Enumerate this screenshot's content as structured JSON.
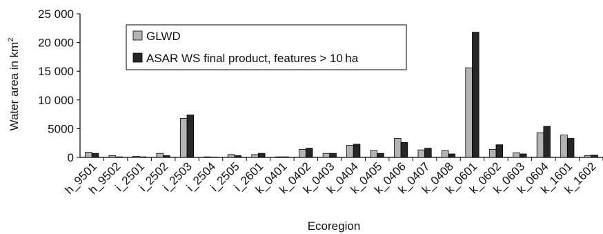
{
  "chart_data": {
    "type": "bar",
    "xlabel": "Ecoregion",
    "ylabel": "Water area in km",
    "ylabel_superscript": "2",
    "ylim": [
      0,
      25000
    ],
    "yticks": [
      0,
      5000,
      10000,
      15000,
      20000,
      25000
    ],
    "ytick_labels": [
      "0",
      "5000",
      "10 000",
      "15 000",
      "20 000",
      "25 000"
    ],
    "grid": false,
    "legend_position": "top-left",
    "categories": [
      "h_9501",
      "h_9502",
      "i_2501",
      "i_2502",
      "i_2503",
      "i_2504",
      "i_2505",
      "i_2601",
      "k_0401",
      "k_0402",
      "k_0403",
      "k_0404",
      "k_0405",
      "k_0406",
      "k_0407",
      "k_0408",
      "k_0601",
      "k_0602",
      "k_0603",
      "k_0604",
      "k_1601",
      "k_1602"
    ],
    "series": [
      {
        "name": "GLWD",
        "color": "#b4b4b4",
        "values": [
          900,
          300,
          200,
          700,
          6800,
          100,
          500,
          500,
          100,
          1400,
          700,
          2100,
          1200,
          3300,
          1300,
          1200,
          15600,
          1400,
          800,
          4300,
          3900,
          300
        ]
      },
      {
        "name": "ASAR WS final product, features > 10 ha",
        "color": "#262626",
        "values": [
          700,
          100,
          100,
          300,
          7400,
          50,
          300,
          700,
          100,
          1600,
          700,
          2300,
          700,
          2600,
          1600,
          600,
          21800,
          2200,
          600,
          5400,
          3300,
          400
        ]
      }
    ]
  }
}
